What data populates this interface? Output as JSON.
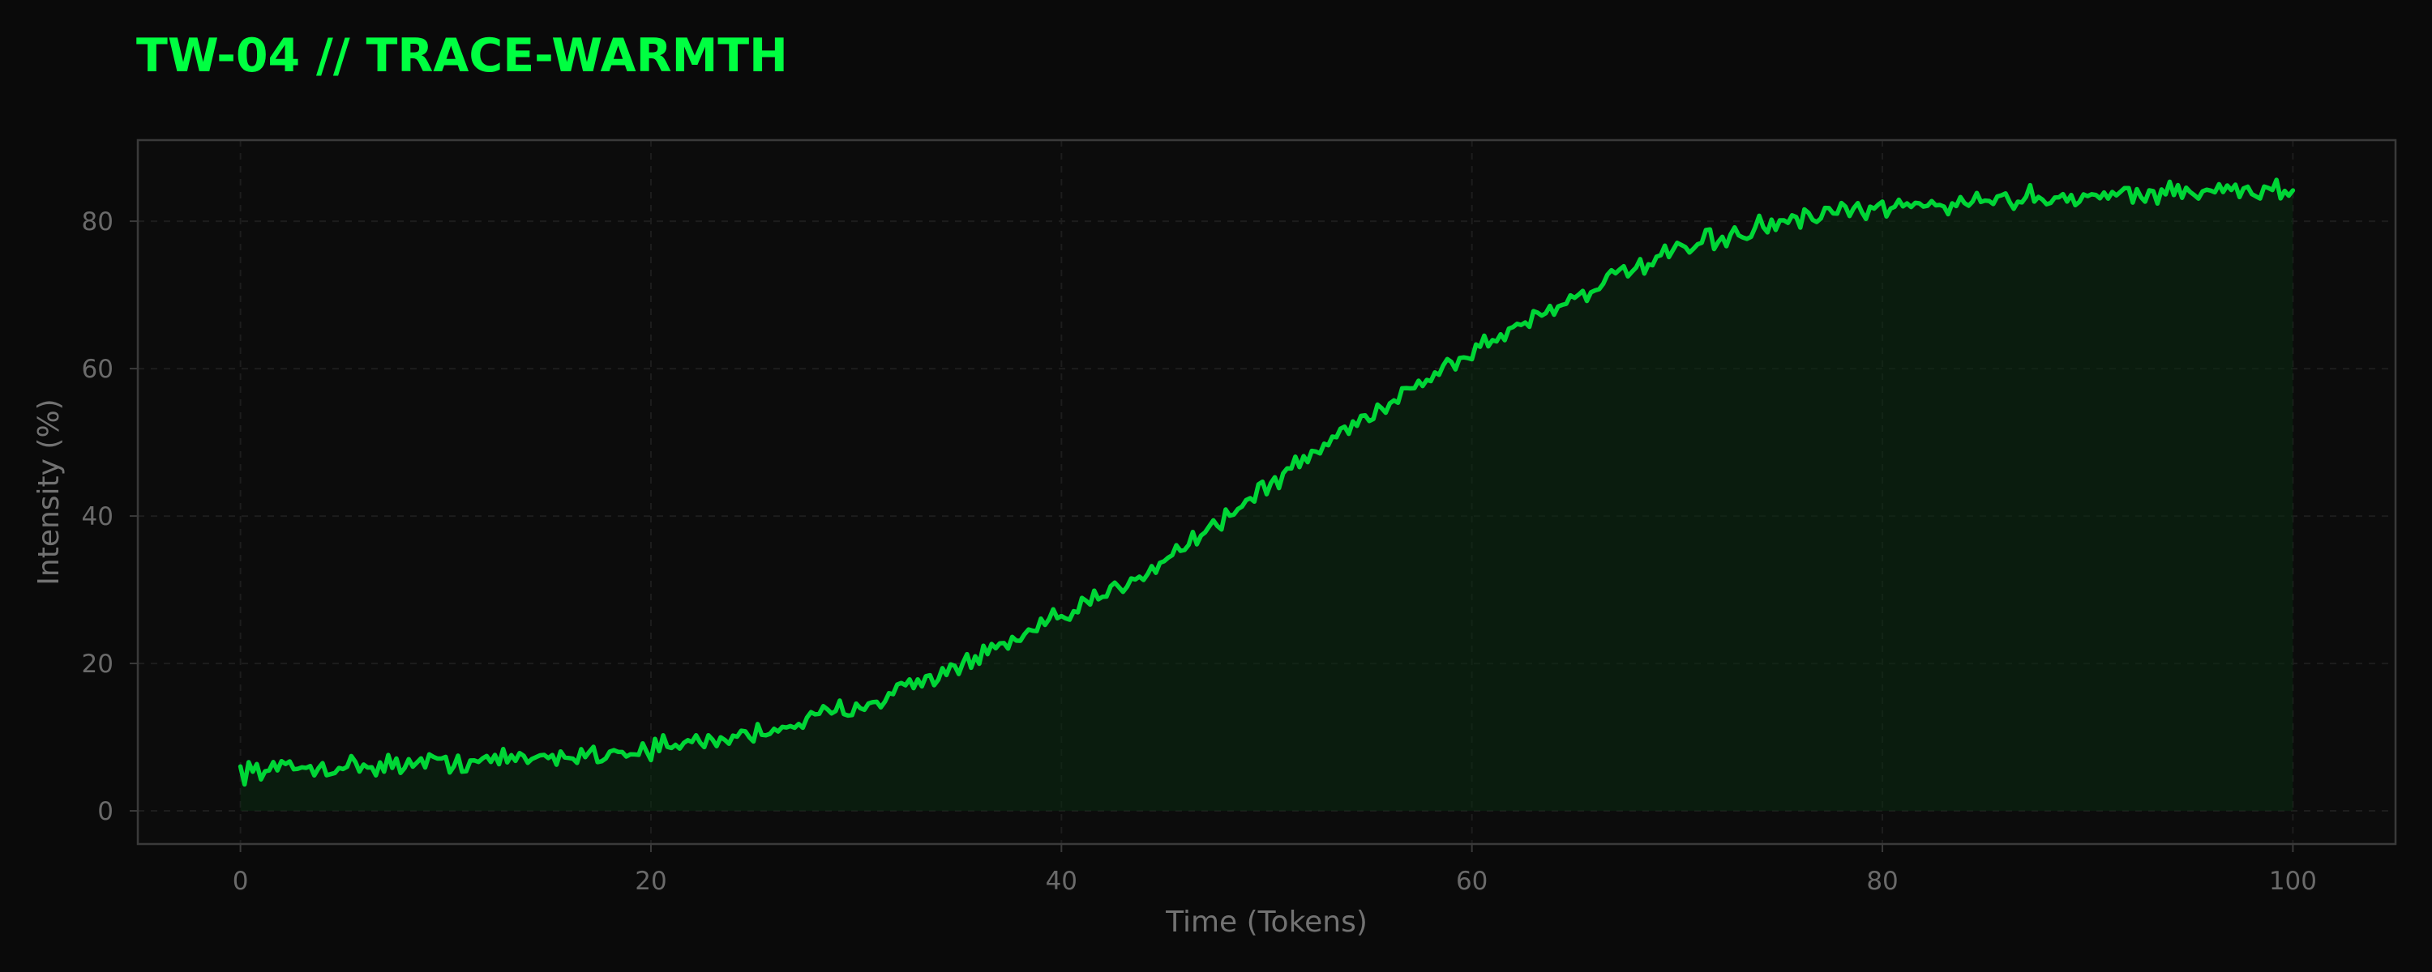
{
  "colors": {
    "background": "#0a0a0a",
    "plot_background": "#0c0c0c",
    "accent": "#00ff41",
    "series": "#00d636",
    "fill": "#0a2a10",
    "grid": "#1d1d1d",
    "frame": "#3a3a3a",
    "tick_text": "#6a6a6a",
    "axis_text": "#727272"
  },
  "chart_data": {
    "type": "line",
    "title": "TW-04 // TRACE-WARMTH",
    "xlabel": "Time (Tokens)",
    "ylabel": "Intensity (%)",
    "xlim": [
      -5,
      105
    ],
    "ylim": [
      -4.5,
      91
    ],
    "xticks": [
      0,
      20,
      40,
      60,
      80,
      100
    ],
    "yticks": [
      0,
      20,
      40,
      60,
      80
    ],
    "grid": true,
    "area_fill": true,
    "noise_amplitude": 1.2,
    "x": [
      0,
      2.5,
      5,
      7.5,
      10,
      12.5,
      15,
      17.5,
      20,
      22.5,
      25,
      27.5,
      30,
      32.5,
      35,
      37.5,
      40,
      42.5,
      45,
      47.5,
      50,
      52.5,
      55,
      57.5,
      60,
      62.5,
      65,
      67.5,
      70,
      72.5,
      75,
      77.5,
      80,
      82.5,
      85,
      87.5,
      90,
      92.5,
      95,
      97.5,
      100
    ],
    "values": [
      5.5,
      5.8,
      6.0,
      6.3,
      6.6,
      6.9,
      7.3,
      7.8,
      8.4,
      9.3,
      10.5,
      12.2,
      14.3,
      16.8,
      19.6,
      22.7,
      26.1,
      29.9,
      34.2,
      38.9,
      43.9,
      49.0,
      53.8,
      58.2,
      62.3,
      66.2,
      69.8,
      73.0,
      75.8,
      78.0,
      79.7,
      80.9,
      81.7,
      82.3,
      82.8,
      83.2,
      83.5,
      83.8,
      84.0,
      84.1,
      84.2
    ]
  }
}
